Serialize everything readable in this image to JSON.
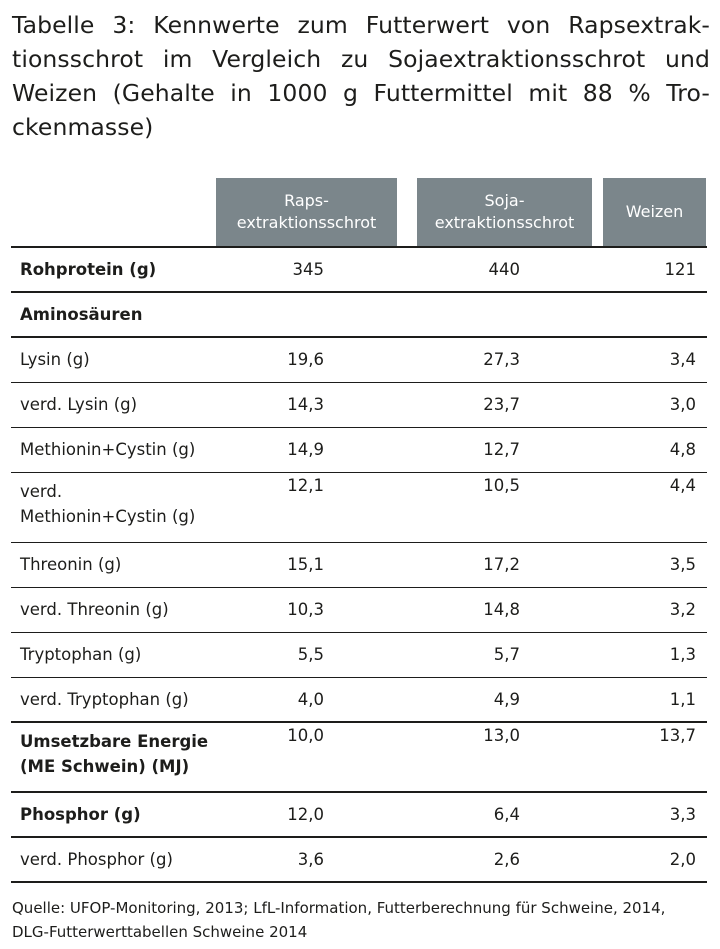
{
  "title": {
    "lines": [
      "Tabelle 3: Kennwerte zum Futterwert von Rapsextrak-",
      "tionsschrot im Vergleich zu Sojaextraktionsschrot und",
      "Weizen (Gehalte in 1000 g Futtermittel mit 88 % Tro-",
      "ckenmasse)"
    ]
  },
  "table": {
    "headers": [
      {
        "line1": "Raps-",
        "line2": "extraktionsschrot"
      },
      {
        "line1": "Soja-",
        "line2": "extraktionsschrot"
      },
      {
        "line1": "Weizen",
        "line2": ""
      }
    ],
    "rows": [
      {
        "label": "Rohprotein (g)",
        "label2": "",
        "values": [
          "345",
          "440",
          "121"
        ]
      },
      {
        "label": "Aminosäuren",
        "label2": "",
        "values": [
          "",
          "",
          ""
        ]
      },
      {
        "label": "Lysin (g)",
        "label2": "",
        "values": [
          "19,6",
          "27,3",
          "3,4"
        ]
      },
      {
        "label": "verd. Lysin (g)",
        "label2": "",
        "values": [
          "14,3",
          "23,7",
          "3,0"
        ]
      },
      {
        "label": "Methionin+Cystin (g)",
        "label2": "",
        "values": [
          "14,9",
          "12,7",
          "4,8"
        ]
      },
      {
        "label": "verd.",
        "label2": "Methionin+Cystin (g)",
        "values": [
          "12,1",
          "10,5",
          "4,4"
        ]
      },
      {
        "label": "Threonin (g)",
        "label2": "",
        "values": [
          "15,1",
          "17,2",
          "3,5"
        ]
      },
      {
        "label": "verd. Threonin (g)",
        "label2": "",
        "values": [
          "10,3",
          "14,8",
          "3,2"
        ]
      },
      {
        "label": "Tryptophan (g)",
        "label2": "",
        "values": [
          "5,5",
          "5,7",
          "1,3"
        ]
      },
      {
        "label": "verd. Tryptophan (g)",
        "label2": "",
        "values": [
          "4,0",
          "4,9",
          "1,1"
        ]
      },
      {
        "label": "Umsetzbare Energie",
        "label2": "(ME Schwein) (MJ)",
        "values": [
          "10,0",
          "13,0",
          "13,7"
        ]
      },
      {
        "label": "Phosphor (g)",
        "label2": "",
        "values": [
          "12,0",
          "6,4",
          "3,3"
        ]
      },
      {
        "label": "verd. Phosphor (g)",
        "label2": "",
        "values": [
          "3,6",
          "2,6",
          "2,0"
        ]
      }
    ]
  },
  "source": {
    "lines": [
      "Quelle: UFOP-Monitoring, 2013; LfL-Information, Futterberechnung für Schweine, 2014,",
      "DLG-Futterwerttabellen Schweine 2014"
    ]
  }
}
